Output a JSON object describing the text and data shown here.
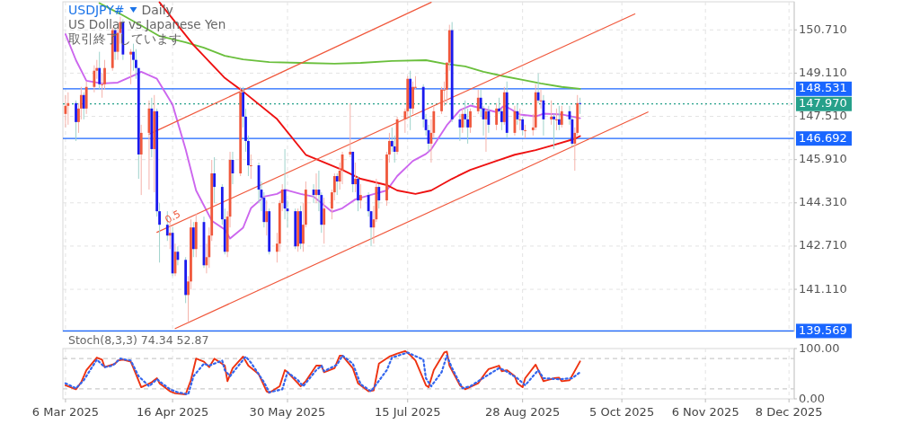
{
  "chart_data": [
    {
      "type": "candlestick",
      "title": "USDJPY#",
      "subtitle": "Daily",
      "annotations": [
        "US Dollar vs Japanese Yen",
        "取引終了しています",
        {
          "text": "0.5",
          "x": "2025-04-14",
          "y": 143.55
        }
      ],
      "xlim": [
        "2025-03-05",
        "2025-12-10"
      ],
      "ylim": [
        139.55,
        151.75
      ],
      "tick_labels": "y",
      "grid": true,
      "xticks": [
        {
          "value": "2025-03-06",
          "label": null
        },
        {
          "value": "2025-04-16",
          "label": null
        },
        {
          "value": "2025-05-30",
          "label": null
        },
        {
          "value": "2025-07-15",
          "label": null
        },
        {
          "value": "2025-08-28",
          "label": null
        },
        {
          "value": "2025-10-05",
          "label": null
        },
        {
          "value": "2025-11-06",
          "label": null
        },
        {
          "value": "2025-12-08",
          "label": null
        }
      ],
      "yticks": [
        {
          "value": 141.11,
          "label": "141.110"
        },
        {
          "value": 142.71,
          "label": "142.710"
        },
        {
          "value": 144.31,
          "label": "144.310"
        },
        {
          "value": 145.91,
          "label": "145.910"
        },
        {
          "value": 147.51,
          "label": "147.510"
        },
        {
          "value": 149.11,
          "label": "149.110"
        },
        {
          "value": 150.71,
          "label": "150.710"
        }
      ],
      "x": [
        "2025-03-06",
        "2025-03-07",
        "2025-03-10",
        "2025-03-11",
        "2025-03-12",
        "2025-03-13",
        "2025-03-14",
        "2025-03-17",
        "2025-03-18",
        "2025-03-19",
        "2025-03-20",
        "2025-03-21",
        "2025-03-24",
        "2025-03-25",
        "2025-03-26",
        "2025-03-27",
        "2025-03-28",
        "2025-03-31",
        "2025-04-01",
        "2025-04-02",
        "2025-04-03",
        "2025-04-04",
        "2025-04-07",
        "2025-04-08",
        "2025-04-09",
        "2025-04-10",
        "2025-04-11",
        "2025-04-14",
        "2025-04-15",
        "2025-04-16",
        "2025-04-17",
        "2025-04-18",
        "2025-04-21",
        "2025-04-22",
        "2025-04-23",
        "2025-04-24",
        "2025-04-25",
        "2025-04-28",
        "2025-04-29",
        "2025-04-30",
        "2025-05-01",
        "2025-05-02",
        "2025-05-05",
        "2025-05-06",
        "2025-05-07",
        "2025-05-08",
        "2025-05-09",
        "2025-05-12",
        "2025-05-13",
        "2025-05-14",
        "2025-05-15",
        "2025-05-16",
        "2025-05-19",
        "2025-05-20",
        "2025-05-21",
        "2025-05-22",
        "2025-05-23",
        "2025-05-26",
        "2025-05-27",
        "2025-05-28",
        "2025-05-29",
        "2025-05-30",
        "2025-06-02",
        "2025-06-03",
        "2025-06-04",
        "2025-06-05",
        "2025-06-06",
        "2025-06-09",
        "2025-06-10",
        "2025-06-11",
        "2025-06-12",
        "2025-06-13",
        "2025-06-16",
        "2025-06-17",
        "2025-06-18",
        "2025-06-19",
        "2025-06-20",
        "2025-06-23",
        "2025-06-24",
        "2025-06-25",
        "2025-06-26",
        "2025-06-27",
        "2025-06-30",
        "2025-07-01",
        "2025-07-02",
        "2025-07-03",
        "2025-07-04",
        "2025-07-07",
        "2025-07-08",
        "2025-07-09",
        "2025-07-10",
        "2025-07-11",
        "2025-07-14",
        "2025-07-15",
        "2025-07-16",
        "2025-07-17",
        "2025-07-18",
        "2025-07-21",
        "2025-07-22",
        "2025-07-23",
        "2025-07-24",
        "2025-07-25",
        "2025-07-28",
        "2025-07-29",
        "2025-07-30",
        "2025-07-31",
        "2025-08-01",
        "2025-08-04",
        "2025-08-05",
        "2025-08-06",
        "2025-08-07",
        "2025-08-08",
        "2025-08-11",
        "2025-08-12",
        "2025-08-13",
        "2025-08-14",
        "2025-08-15",
        "2025-08-18",
        "2025-08-19",
        "2025-08-20",
        "2025-08-21",
        "2025-08-22",
        "2025-08-25",
        "2025-08-26",
        "2025-08-27",
        "2025-08-28",
        "2025-08-29",
        "2025-09-01",
        "2025-09-02",
        "2025-09-03",
        "2025-09-04",
        "2025-09-05",
        "2025-09-08",
        "2025-09-09",
        "2025-09-10",
        "2025-09-11",
        "2025-09-12",
        "2025-09-15",
        "2025-09-16",
        "2025-09-17",
        "2025-09-18",
        "2025-09-19"
      ],
      "ohlc": [
        [
          147.6,
          148.3,
          147.1,
          147.9
        ],
        [
          147.9,
          148.4,
          147.2,
          148.0
        ],
        [
          148.0,
          148.1,
          146.6,
          147.3
        ],
        [
          147.3,
          148.0,
          146.9,
          147.8
        ],
        [
          147.8,
          148.6,
          147.4,
          148.3
        ],
        [
          148.3,
          148.4,
          147.4,
          147.8
        ],
        [
          147.8,
          148.8,
          147.6,
          148.6
        ],
        [
          148.6,
          149.4,
          148.4,
          149.2
        ],
        [
          149.2,
          149.6,
          148.9,
          149.3
        ],
        [
          149.3,
          149.9,
          148.5,
          148.7
        ],
        [
          148.7,
          149.1,
          148.2,
          148.7
        ],
        [
          148.7,
          149.6,
          148.5,
          149.3
        ],
        [
          149.3,
          150.8,
          149.2,
          150.7
        ],
        [
          150.7,
          150.8,
          149.6,
          149.9
        ],
        [
          149.9,
          150.8,
          149.6,
          150.6
        ],
        [
          150.6,
          151.2,
          150.2,
          151.0
        ],
        [
          151.0,
          151.1,
          149.6,
          149.8
        ],
        [
          149.8,
          150.0,
          148.7,
          149.9
        ],
        [
          149.9,
          150.2,
          149.2,
          149.6
        ],
        [
          149.6,
          150.0,
          148.9,
          149.3
        ],
        [
          149.3,
          149.3,
          145.2,
          146.1
        ],
        [
          146.1,
          147.2,
          144.6,
          146.9
        ],
        [
          146.9,
          148.1,
          144.8,
          147.8
        ],
        [
          147.8,
          148.2,
          146.0,
          146.3
        ],
        [
          146.3,
          148.3,
          144.7,
          147.7
        ],
        [
          147.7,
          147.8,
          143.8,
          144.0
        ],
        [
          144.0,
          144.3,
          142.1,
          143.5
        ],
        [
          143.5,
          144.0,
          142.9,
          143.1
        ],
        [
          143.1,
          143.6,
          142.6,
          143.2
        ],
        [
          143.2,
          143.4,
          141.6,
          141.7
        ],
        [
          141.7,
          142.8,
          141.6,
          142.5
        ],
        [
          142.5,
          142.7,
          142.0,
          142.2
        ],
        [
          142.2,
          142.3,
          140.6,
          140.9
        ],
        [
          140.9,
          141.6,
          139.9,
          141.4
        ],
        [
          141.4,
          143.7,
          141.1,
          143.4
        ],
        [
          143.4,
          143.6,
          142.3,
          142.6
        ],
        [
          142.6,
          143.9,
          142.3,
          143.6
        ],
        [
          143.6,
          143.8,
          141.9,
          142.0
        ],
        [
          142.0,
          142.8,
          141.7,
          142.3
        ],
        [
          142.3,
          143.4,
          141.9,
          143.1
        ],
        [
          143.1,
          145.9,
          142.9,
          145.4
        ],
        [
          145.4,
          146.0,
          144.3,
          144.9
        ],
        [
          144.9,
          145.0,
          143.5,
          143.7
        ],
        [
          143.7,
          144.1,
          142.4,
          142.5
        ],
        [
          142.5,
          144.0,
          142.3,
          143.8
        ],
        [
          143.8,
          146.2,
          143.4,
          145.9
        ],
        [
          145.9,
          146.2,
          145.0,
          145.4
        ],
        [
          145.4,
          148.6,
          145.3,
          148.4
        ],
        [
          148.4,
          148.6,
          147.1,
          147.5
        ],
        [
          147.5,
          147.8,
          146.2,
          146.6
        ],
        [
          146.6,
          146.8,
          145.3,
          145.7
        ],
        [
          145.7,
          146.1,
          145.2,
          145.7
        ],
        [
          145.7,
          145.8,
          144.3,
          144.8
        ],
        [
          144.8,
          145.1,
          144.0,
          144.5
        ],
        [
          144.5,
          144.7,
          143.4,
          143.6
        ],
        [
          143.6,
          144.4,
          143.1,
          144.0
        ],
        [
          144.0,
          144.1,
          142.4,
          142.5
        ],
        [
          142.5,
          143.2,
          142.1,
          142.8
        ],
        [
          142.8,
          144.4,
          142.5,
          144.3
        ],
        [
          144.3,
          145.0,
          144.0,
          144.8
        ],
        [
          144.8,
          146.3,
          143.7,
          144.1
        ],
        [
          144.1,
          144.4,
          143.4,
          144.0
        ],
        [
          144.0,
          144.1,
          142.6,
          142.7
        ],
        [
          142.7,
          144.1,
          142.5,
          144.0
        ],
        [
          144.0,
          144.2,
          142.6,
          142.8
        ],
        [
          142.8,
          144.3,
          142.5,
          143.5
        ],
        [
          143.5,
          145.1,
          143.4,
          144.8
        ],
        [
          144.8,
          145.0,
          144.3,
          144.6
        ],
        [
          144.6,
          145.4,
          144.3,
          144.8
        ],
        [
          144.8,
          145.5,
          144.0,
          144.6
        ],
        [
          144.6,
          144.7,
          143.2,
          143.5
        ],
        [
          143.5,
          144.5,
          142.8,
          144.1
        ],
        [
          144.1,
          144.8,
          143.7,
          144.7
        ],
        [
          144.7,
          145.4,
          144.4,
          145.3
        ],
        [
          145.3,
          145.4,
          144.6,
          145.1
        ],
        [
          145.1,
          145.8,
          144.8,
          145.5
        ],
        [
          145.5,
          146.2,
          145.0,
          146.1
        ],
        [
          146.1,
          148.0,
          146.0,
          146.2
        ],
        [
          146.2,
          146.2,
          144.7,
          145.0
        ],
        [
          145.0,
          145.8,
          144.7,
          145.2
        ],
        [
          145.2,
          145.3,
          144.0,
          144.4
        ],
        [
          144.4,
          145.0,
          144.1,
          144.6
        ],
        [
          144.6,
          144.7,
          143.8,
          144.0
        ],
        [
          144.0,
          144.0,
          142.7,
          143.4
        ],
        [
          143.4,
          144.2,
          142.8,
          143.7
        ],
        [
          143.7,
          145.2,
          143.6,
          144.9
        ],
        [
          144.9,
          145.0,
          144.1,
          144.4
        ],
        [
          144.4,
          146.2,
          144.2,
          146.1
        ],
        [
          146.1,
          146.9,
          145.8,
          146.6
        ],
        [
          146.6,
          147.1,
          146.2,
          146.4
        ],
        [
          146.4,
          146.8,
          145.8,
          146.2
        ],
        [
          146.2,
          147.5,
          146.1,
          147.4
        ],
        [
          147.4,
          147.8,
          146.9,
          147.7
        ],
        [
          147.7,
          149.0,
          147.5,
          148.9
        ],
        [
          148.9,
          149.2,
          147.0,
          147.8
        ],
        [
          147.8,
          148.8,
          147.6,
          148.6
        ],
        [
          148.6,
          149.0,
          148.5,
          148.6
        ],
        [
          148.6,
          148.7,
          147.1,
          147.4
        ],
        [
          147.4,
          147.6,
          146.8,
          147.0
        ],
        [
          147.0,
          147.2,
          146.2,
          146.5
        ],
        [
          146.5,
          147.4,
          145.8,
          146.9
        ],
        [
          146.9,
          147.9,
          146.7,
          147.7
        ],
        [
          147.7,
          148.6,
          147.6,
          148.5
        ],
        [
          148.5,
          148.8,
          147.9,
          148.5
        ],
        [
          148.5,
          149.5,
          148.0,
          149.5
        ],
        [
          149.5,
          150.9,
          149.2,
          150.7
        ],
        [
          150.7,
          151.0,
          147.3,
          147.4
        ],
        [
          147.4,
          147.6,
          146.6,
          147.1
        ],
        [
          147.1,
          147.8,
          146.9,
          147.6
        ],
        [
          147.6,
          148.1,
          147.1,
          147.4
        ],
        [
          147.4,
          147.8,
          146.5,
          147.1
        ],
        [
          147.1,
          147.8,
          146.9,
          147.7
        ],
        [
          147.7,
          148.5,
          147.6,
          148.2
        ],
        [
          148.2,
          148.5,
          147.5,
          147.8
        ],
        [
          147.8,
          147.9,
          146.8,
          147.4
        ],
        [
          147.4,
          147.8,
          146.2,
          147.7
        ],
        [
          147.7,
          147.9,
          146.9,
          147.2
        ],
        [
          147.2,
          148.0,
          147.0,
          147.8
        ],
        [
          147.8,
          148.2,
          147.6,
          147.7
        ],
        [
          147.7,
          147.8,
          147.0,
          147.3
        ],
        [
          147.3,
          148.6,
          147.2,
          148.4
        ],
        [
          148.4,
          148.8,
          146.7,
          146.9
        ],
        [
          146.9,
          147.9,
          146.8,
          147.7
        ],
        [
          147.7,
          148.0,
          147.2,
          147.4
        ],
        [
          147.4,
          147.8,
          147.0,
          147.4
        ],
        [
          147.4,
          147.5,
          146.8,
          147.0
        ],
        [
          147.0,
          147.2,
          146.7,
          147.0
        ],
        [
          147.0,
          147.6,
          146.8,
          147.1
        ],
        [
          147.1,
          148.7,
          147.0,
          148.4
        ],
        [
          148.4,
          149.1,
          148.0,
          148.1
        ],
        [
          148.1,
          148.5,
          147.8,
          148.1
        ],
        [
          148.1,
          148.3,
          146.8,
          147.4
        ],
        [
          147.4,
          148.1,
          147.2,
          147.5
        ],
        [
          147.5,
          147.6,
          146.3,
          147.4
        ],
        [
          147.4,
          147.8,
          147.0,
          147.4
        ],
        [
          147.4,
          147.9,
          147.0,
          147.2
        ],
        [
          147.2,
          147.9,
          147.1,
          147.7
        ],
        [
          147.7,
          147.9,
          147.2,
          147.4
        ],
        [
          147.4,
          147.5,
          146.4,
          146.5
        ],
        [
          146.5,
          147.1,
          145.5,
          146.9
        ],
        [
          146.9,
          148.3,
          146.8,
          148.0
        ],
        [
          148.0,
          148.2,
          147.6,
          147.97
        ]
      ],
      "series": [
        {
          "type": "line",
          "color": "#6abf3c",
          "x": [
            "2025-03-19",
            "2025-03-27",
            "2025-04-04",
            "2025-04-11",
            "2025-04-21",
            "2025-04-28",
            "2025-05-06",
            "2025-05-13",
            "2025-05-23",
            "2025-06-04",
            "2025-06-17",
            "2025-06-27",
            "2025-07-09",
            "2025-07-22",
            "2025-07-29",
            "2025-08-06",
            "2025-08-13",
            "2025-08-21",
            "2025-08-28",
            "2025-09-04",
            "2025-09-12",
            "2025-09-19"
          ],
          "values": [
            151.7,
            151.3,
            150.87,
            150.48,
            150.25,
            150.05,
            149.75,
            149.62,
            149.52,
            149.49,
            149.46,
            149.49,
            149.56,
            149.59,
            149.46,
            149.36,
            149.16,
            148.99,
            148.86,
            148.73,
            148.6,
            148.53
          ]
        },
        {
          "type": "line",
          "color": "#cc66ee",
          "x": [
            "2025-03-06",
            "2025-03-10",
            "2025-03-14",
            "2025-03-20",
            "2025-03-26",
            "2025-04-02",
            "2025-04-04",
            "2025-04-10",
            "2025-04-16",
            "2025-04-21",
            "2025-04-25",
            "2025-05-01",
            "2025-05-06",
            "2025-05-08",
            "2025-05-13",
            "2025-05-16",
            "2025-05-21",
            "2025-05-26",
            "2025-05-29",
            "2025-06-04",
            "2025-06-09",
            "2025-06-16",
            "2025-06-20",
            "2025-06-25",
            "2025-07-01",
            "2025-07-07",
            "2025-07-11",
            "2025-07-17",
            "2025-07-22",
            "2025-07-24",
            "2025-07-30",
            "2025-08-04",
            "2025-08-08",
            "2025-08-18",
            "2025-08-21",
            "2025-08-27",
            "2025-09-02",
            "2025-09-05",
            "2025-09-12",
            "2025-09-19"
          ],
          "values": [
            150.55,
            149.59,
            148.83,
            148.73,
            148.76,
            149.06,
            149.16,
            148.9,
            147.94,
            146.29,
            144.77,
            143.65,
            143.32,
            142.99,
            143.39,
            144.11,
            144.54,
            144.64,
            144.8,
            144.64,
            144.54,
            143.98,
            144.11,
            144.44,
            144.61,
            144.77,
            145.3,
            145.86,
            146.12,
            146.29,
            147.18,
            147.74,
            147.91,
            147.67,
            147.91,
            147.58,
            147.51,
            147.61,
            147.58,
            147.44
          ]
        },
        {
          "type": "line",
          "color": "#ee1111",
          "x": [
            "2025-04-11",
            "2025-04-24",
            "2025-05-06",
            "2025-05-13",
            "2025-05-26",
            "2025-06-06",
            "2025-06-20",
            "2025-06-27",
            "2025-07-07",
            "2025-07-11",
            "2025-07-18",
            "2025-07-24",
            "2025-08-01",
            "2025-08-08",
            "2025-08-18",
            "2025-08-25",
            "2025-09-02",
            "2025-09-09",
            "2025-09-17",
            "2025-09-19"
          ],
          "values": [
            151.73,
            150.15,
            148.93,
            148.43,
            147.41,
            146.09,
            145.53,
            145.2,
            144.97,
            144.77,
            144.64,
            144.77,
            145.2,
            145.53,
            145.86,
            146.09,
            146.26,
            146.45,
            146.68,
            146.78
          ]
        },
        {
          "type": "line",
          "color": "#f0583c",
          "x": [
            "2025-04-07",
            "2025-07-24"
          ],
          "values": [
            146.85,
            151.73
          ]
        },
        {
          "type": "line",
          "color": "#f0583c",
          "x": [
            "2025-04-10",
            "2025-10-10"
          ],
          "values": [
            143.22,
            151.3
          ]
        },
        {
          "type": "line",
          "color": "#f0583c",
          "x": [
            "2025-04-17",
            "2025-10-15"
          ],
          "values": [
            139.66,
            147.67
          ]
        }
      ],
      "ref_lines": [
        {
          "axis": "y",
          "value": 148.531,
          "label": "148.531",
          "color": "#1a66ff"
        },
        {
          "axis": "y",
          "value": 147.97,
          "label": "147.970",
          "color": "#26a08a",
          "line_style": "dotted"
        },
        {
          "axis": "y",
          "value": 146.692,
          "label": "146.692",
          "color": "#1a66ff"
        },
        {
          "axis": "y",
          "value": 139.569,
          "label": "139.569",
          "color": "#1a66ff"
        }
      ]
    },
    {
      "type": "line",
      "title": "Stoch(8,3,3) 74.34 52.87",
      "xlim": [
        "2025-03-05",
        "2025-12-10"
      ],
      "ylim": [
        0,
        100
      ],
      "grid": "x",
      "xticks": [
        {
          "value": "2025-03-06",
          "label": "6 Mar 2025"
        },
        {
          "value": "2025-04-16",
          "label": "16 Apr 2025"
        },
        {
          "value": "2025-05-30",
          "label": "30 May 2025"
        },
        {
          "value": "2025-07-15",
          "label": "15 Jul 2025"
        },
        {
          "value": "2025-08-28",
          "label": "28 Aug 2025"
        },
        {
          "value": "2025-10-05",
          "label": "5 Oct 2025"
        },
        {
          "value": "2025-11-06",
          "label": "6 Nov 2025"
        },
        {
          "value": "2025-12-08",
          "label": "8 Dec 2025"
        }
      ],
      "yticks": [
        {
          "value": 100,
          "label": "100.00"
        },
        {
          "value": 0,
          "label": "0.00"
        }
      ],
      "series": [
        {
          "color": "#ee3311",
          "x": [
            "2025-03-06",
            "2025-03-10",
            "2025-03-12",
            "2025-03-14",
            "2025-03-18",
            "2025-03-20",
            "2025-03-21",
            "2025-03-25",
            "2025-03-26",
            "2025-03-28",
            "2025-03-31",
            "2025-04-02",
            "2025-04-04",
            "2025-04-08",
            "2025-04-10",
            "2025-04-11",
            "2025-04-15",
            "2025-04-17",
            "2025-04-21",
            "2025-04-23",
            "2025-04-25",
            "2025-04-28",
            "2025-04-30",
            "2025-05-02",
            "2025-05-06",
            "2025-05-07",
            "2025-05-09",
            "2025-05-13",
            "2025-05-15",
            "2025-05-19",
            "2025-05-22",
            "2025-05-23",
            "2025-05-27",
            "2025-05-29",
            "2025-05-30",
            "2025-06-03",
            "2025-06-04",
            "2025-06-06",
            "2025-06-10",
            "2025-06-12",
            "2025-06-13",
            "2025-06-17",
            "2025-06-19",
            "2025-06-20",
            "2025-06-24",
            "2025-06-26",
            "2025-06-30",
            "2025-07-02",
            "2025-07-04",
            "2025-07-08",
            "2025-07-09",
            "2025-07-11",
            "2025-07-14",
            "2025-07-16",
            "2025-07-18",
            "2025-07-22",
            "2025-07-23",
            "2025-07-25",
            "2025-07-29",
            "2025-07-30",
            "2025-07-31",
            "2025-08-04",
            "2025-08-06",
            "2025-08-11",
            "2025-08-14",
            "2025-08-15",
            "2025-08-19",
            "2025-08-20",
            "2025-08-22",
            "2025-08-25",
            "2025-08-26",
            "2025-08-28",
            "2025-08-29",
            "2025-09-02",
            "2025-09-05",
            "2025-09-09",
            "2025-09-11",
            "2025-09-12",
            "2025-09-15",
            "2025-09-19"
          ],
          "values": [
            27,
            19,
            33,
            57,
            82,
            78,
            63,
            70,
            76,
            78,
            74,
            49,
            23,
            33,
            41,
            31,
            15,
            11,
            9,
            37,
            80,
            74,
            63,
            80,
            66,
            35,
            61,
            84,
            66,
            49,
            15,
            12,
            25,
            57,
            53,
            31,
            25,
            35,
            66,
            66,
            53,
            61,
            86,
            86,
            61,
            31,
            15,
            17,
            70,
            84,
            86,
            90,
            95,
            87,
            76,
            27,
            23,
            57,
            92,
            94,
            66,
            27,
            19,
            31,
            53,
            59,
            66,
            55,
            57,
            45,
            31,
            23,
            41,
            68,
            35,
            41,
            42,
            35,
            37,
            74.34
          ]
        },
        {
          "color": "#3366ee",
          "line_style": "dotted",
          "x": [
            "2025-03-06",
            "2025-03-10",
            "2025-03-13",
            "2025-03-18",
            "2025-03-21",
            "2025-03-24",
            "2025-03-27",
            "2025-03-31",
            "2025-04-03",
            "2025-04-07",
            "2025-04-10",
            "2025-04-15",
            "2025-04-18",
            "2025-04-22",
            "2025-04-24",
            "2025-04-28",
            "2025-04-30",
            "2025-05-05",
            "2025-05-06",
            "2025-05-08",
            "2025-05-14",
            "2025-05-16",
            "2025-05-21",
            "2025-05-23",
            "2025-05-28",
            "2025-05-30",
            "2025-06-03",
            "2025-06-05",
            "2025-06-10",
            "2025-06-12",
            "2025-06-13",
            "2025-06-18",
            "2025-06-20",
            "2025-06-24",
            "2025-06-27",
            "2025-07-01",
            "2025-07-07",
            "2025-07-09",
            "2025-07-15",
            "2025-07-21",
            "2025-07-22",
            "2025-07-24",
            "2025-07-28",
            "2025-07-30",
            "2025-08-01",
            "2025-08-05",
            "2025-08-08",
            "2025-08-14",
            "2025-08-19",
            "2025-08-21",
            "2025-08-26",
            "2025-08-29",
            "2025-09-03",
            "2025-09-05",
            "2025-09-11",
            "2025-09-16",
            "2025-09-19"
          ],
          "values": [
            31,
            21,
            37,
            78,
            63,
            66,
            80,
            76,
            45,
            25,
            39,
            19,
            13,
            9,
            45,
            70,
            66,
            76,
            57,
            45,
            84,
            72,
            33,
            13,
            19,
            53,
            37,
            25,
            57,
            66,
            55,
            68,
            86,
            70,
            29,
            15,
            57,
            82,
            92,
            78,
            41,
            25,
            53,
            86,
            61,
            21,
            25,
            45,
            61,
            57,
            41,
            27,
            57,
            41,
            39,
            41,
            52.87
          ]
        }
      ],
      "ref_lines": [
        {
          "axis": "y",
          "value": 80,
          "color": "#cccccc",
          "line_style": "dashed"
        },
        {
          "axis": "y",
          "value": 20,
          "color": "#cccccc",
          "line_style": "dashed"
        }
      ]
    }
  ]
}
